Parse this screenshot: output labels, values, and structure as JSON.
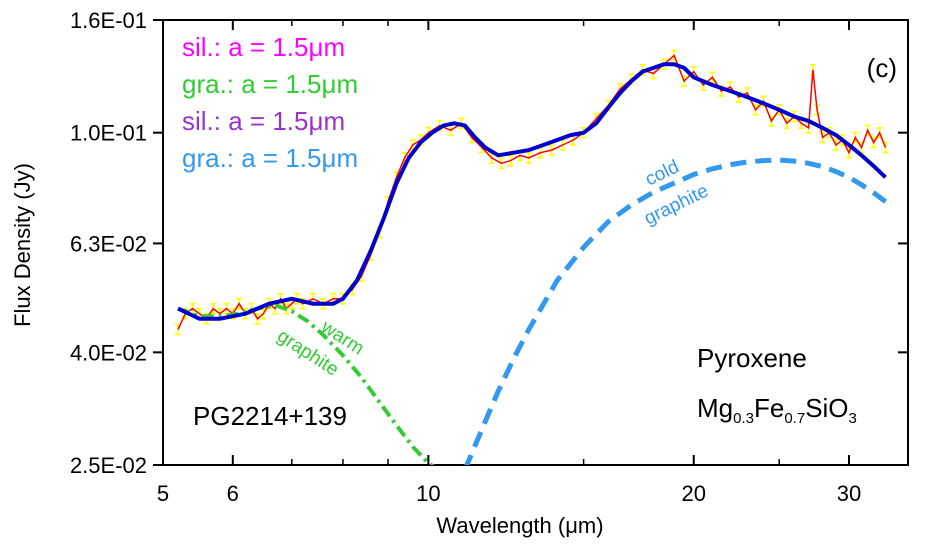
{
  "chart_data": {
    "type": "line",
    "panel_label": "(c)",
    "xlabel": "Wavelength (μm)",
    "ylabel": "Flux Density (Jy)",
    "xscale": "log",
    "yscale": "log",
    "xlim": [
      5,
      35
    ],
    "ylim": [
      0.025,
      0.16
    ],
    "x_ticks": [
      5,
      6,
      10,
      20,
      30
    ],
    "x_tick_labels": [
      "5",
      "6",
      "10",
      "20",
      "30"
    ],
    "y_ticks": [
      0.025,
      0.04,
      0.063,
      0.1,
      0.16
    ],
    "y_tick_labels": [
      "2.5E-02",
      "4.0E-02",
      "6.3E-02",
      "1.0E-01",
      "1.6E-01"
    ],
    "grid": false,
    "legend_placement": "top-left",
    "legend": [
      {
        "text": "sil.:  a = 1.5μm",
        "color": "#ff00ff"
      },
      {
        "text": "gra.:  a = 1.5μm",
        "color": "#33cc33"
      },
      {
        "text": "sil.:  a = 1.5μm",
        "color": "#9933cc"
      },
      {
        "text": "gra.:  a = 1.5μm",
        "color": "#3399ee"
      }
    ],
    "annotations": {
      "object": "PG2214+139",
      "mineral": "Pyroxene",
      "formula": {
        "p1": "Mg",
        "s1": "0.3",
        "p2": "Fe",
        "s2": "0.7",
        "p3": "SiO",
        "s3": "3"
      },
      "warm_label": [
        "warm",
        "graphite"
      ],
      "cold_label": [
        "cold",
        "graphite"
      ]
    },
    "series": [
      {
        "style": "observed",
        "color": "#ff0000",
        "errorbar_color": "#ffff00",
        "x": [
          5.2,
          5.3,
          5.4,
          5.5,
          5.6,
          5.7,
          5.8,
          5.9,
          6.0,
          6.1,
          6.2,
          6.3,
          6.4,
          6.5,
          6.6,
          6.7,
          6.8,
          6.9,
          7.0,
          7.1,
          7.2,
          7.4,
          7.6,
          7.8,
          8.0,
          8.2,
          8.4,
          8.6,
          8.8,
          9.0,
          9.2,
          9.4,
          9.6,
          9.8,
          10.0,
          10.3,
          10.6,
          10.9,
          11.2,
          11.5,
          11.8,
          12.1,
          12.4,
          12.7,
          13.0,
          13.4,
          13.8,
          14.2,
          14.6,
          15.0,
          15.5,
          16.0,
          16.5,
          17.0,
          17.5,
          18.0,
          18.5,
          19.0,
          19.5,
          20.0,
          20.5,
          21.0,
          21.5,
          22.0,
          22.5,
          23.0,
          23.5,
          24.0,
          24.5,
          25.0,
          25.5,
          26.0,
          26.5,
          27.0,
          27.3,
          27.6,
          28.0,
          28.5,
          29.0,
          29.5,
          30.0,
          30.5,
          31.0,
          31.5,
          32.0,
          32.5,
          33.0
        ],
        "y": [
          0.044,
          0.047,
          0.048,
          0.047,
          0.046,
          0.048,
          0.047,
          0.048,
          0.047,
          0.049,
          0.047,
          0.048,
          0.046,
          0.047,
          0.049,
          0.048,
          0.05,
          0.048,
          0.049,
          0.05,
          0.049,
          0.05,
          0.049,
          0.05,
          0.05,
          0.052,
          0.055,
          0.06,
          0.066,
          0.075,
          0.083,
          0.09,
          0.095,
          0.097,
          0.1,
          0.103,
          0.101,
          0.104,
          0.098,
          0.094,
          0.09,
          0.088,
          0.089,
          0.091,
          0.09,
          0.092,
          0.093,
          0.095,
          0.097,
          0.1,
          0.106,
          0.112,
          0.12,
          0.125,
          0.13,
          0.128,
          0.133,
          0.138,
          0.124,
          0.129,
          0.122,
          0.126,
          0.119,
          0.121,
          0.116,
          0.118,
          0.11,
          0.114,
          0.105,
          0.11,
          0.104,
          0.107,
          0.104,
          0.102,
          0.13,
          0.11,
          0.098,
          0.1,
          0.095,
          0.097,
          0.092,
          0.098,
          0.094,
          0.101,
          0.096,
          0.1,
          0.094
        ]
      },
      {
        "style": "total-model",
        "color": "#0000cc",
        "x": [
          5.2,
          5.5,
          5.8,
          6.2,
          6.6,
          7.0,
          7.4,
          7.8,
          8.0,
          8.3,
          8.6,
          8.9,
          9.2,
          9.5,
          9.8,
          10.1,
          10.4,
          10.7,
          11.0,
          11.3,
          11.6,
          12.0,
          12.5,
          13.0,
          13.5,
          14.0,
          14.5,
          15.0,
          15.5,
          16.0,
          16.5,
          17.0,
          17.5,
          18.0,
          18.5,
          19.0,
          19.5,
          20.0,
          21.0,
          22.0,
          23.0,
          24.0,
          25.0,
          26.0,
          27.0,
          28.0,
          29.0,
          30.0,
          31.0,
          32.0,
          33.0
        ],
        "y": [
          0.048,
          0.046,
          0.046,
          0.047,
          0.049,
          0.05,
          0.049,
          0.049,
          0.05,
          0.054,
          0.061,
          0.07,
          0.081,
          0.09,
          0.096,
          0.1,
          0.103,
          0.104,
          0.103,
          0.098,
          0.094,
          0.091,
          0.092,
          0.093,
          0.095,
          0.097,
          0.099,
          0.1,
          0.104,
          0.111,
          0.118,
          0.124,
          0.129,
          0.131,
          0.133,
          0.133,
          0.131,
          0.126,
          0.122,
          0.119,
          0.116,
          0.113,
          0.11,
          0.107,
          0.105,
          0.102,
          0.099,
          0.095,
          0.091,
          0.087,
          0.083
        ]
      },
      {
        "style": "warm-graphite",
        "color": "#33cc33",
        "x": [
          5.2,
          5.5,
          5.8,
          6.1,
          6.4,
          6.7,
          7.0,
          7.3,
          7.6,
          8.0,
          8.4,
          8.8,
          9.2,
          9.6,
          10.0,
          10.3
        ],
        "y": [
          0.048,
          0.0465,
          0.0465,
          0.047,
          0.048,
          0.0487,
          0.0475,
          0.0455,
          0.043,
          0.0395,
          0.036,
          0.0325,
          0.0295,
          0.027,
          0.0252,
          0.0244
        ]
      },
      {
        "style": "cold-graphite",
        "color": "#3399ee",
        "x": [
          11.0,
          11.5,
          12.0,
          12.5,
          13.0,
          14.0,
          15.0,
          16.0,
          17.0,
          18.0,
          19.0,
          20.0,
          21.0,
          22.0,
          23.0,
          24.0,
          25.0,
          26.0,
          27.0,
          28.0,
          29.0,
          30.0,
          31.0,
          32.0,
          33.0
        ],
        "y": [
          0.0245,
          0.029,
          0.034,
          0.039,
          0.044,
          0.054,
          0.062,
          0.069,
          0.074,
          0.078,
          0.081,
          0.084,
          0.086,
          0.0875,
          0.0885,
          0.089,
          0.0892,
          0.0888,
          0.088,
          0.0868,
          0.085,
          0.083,
          0.0805,
          0.0778,
          0.075
        ]
      }
    ]
  }
}
